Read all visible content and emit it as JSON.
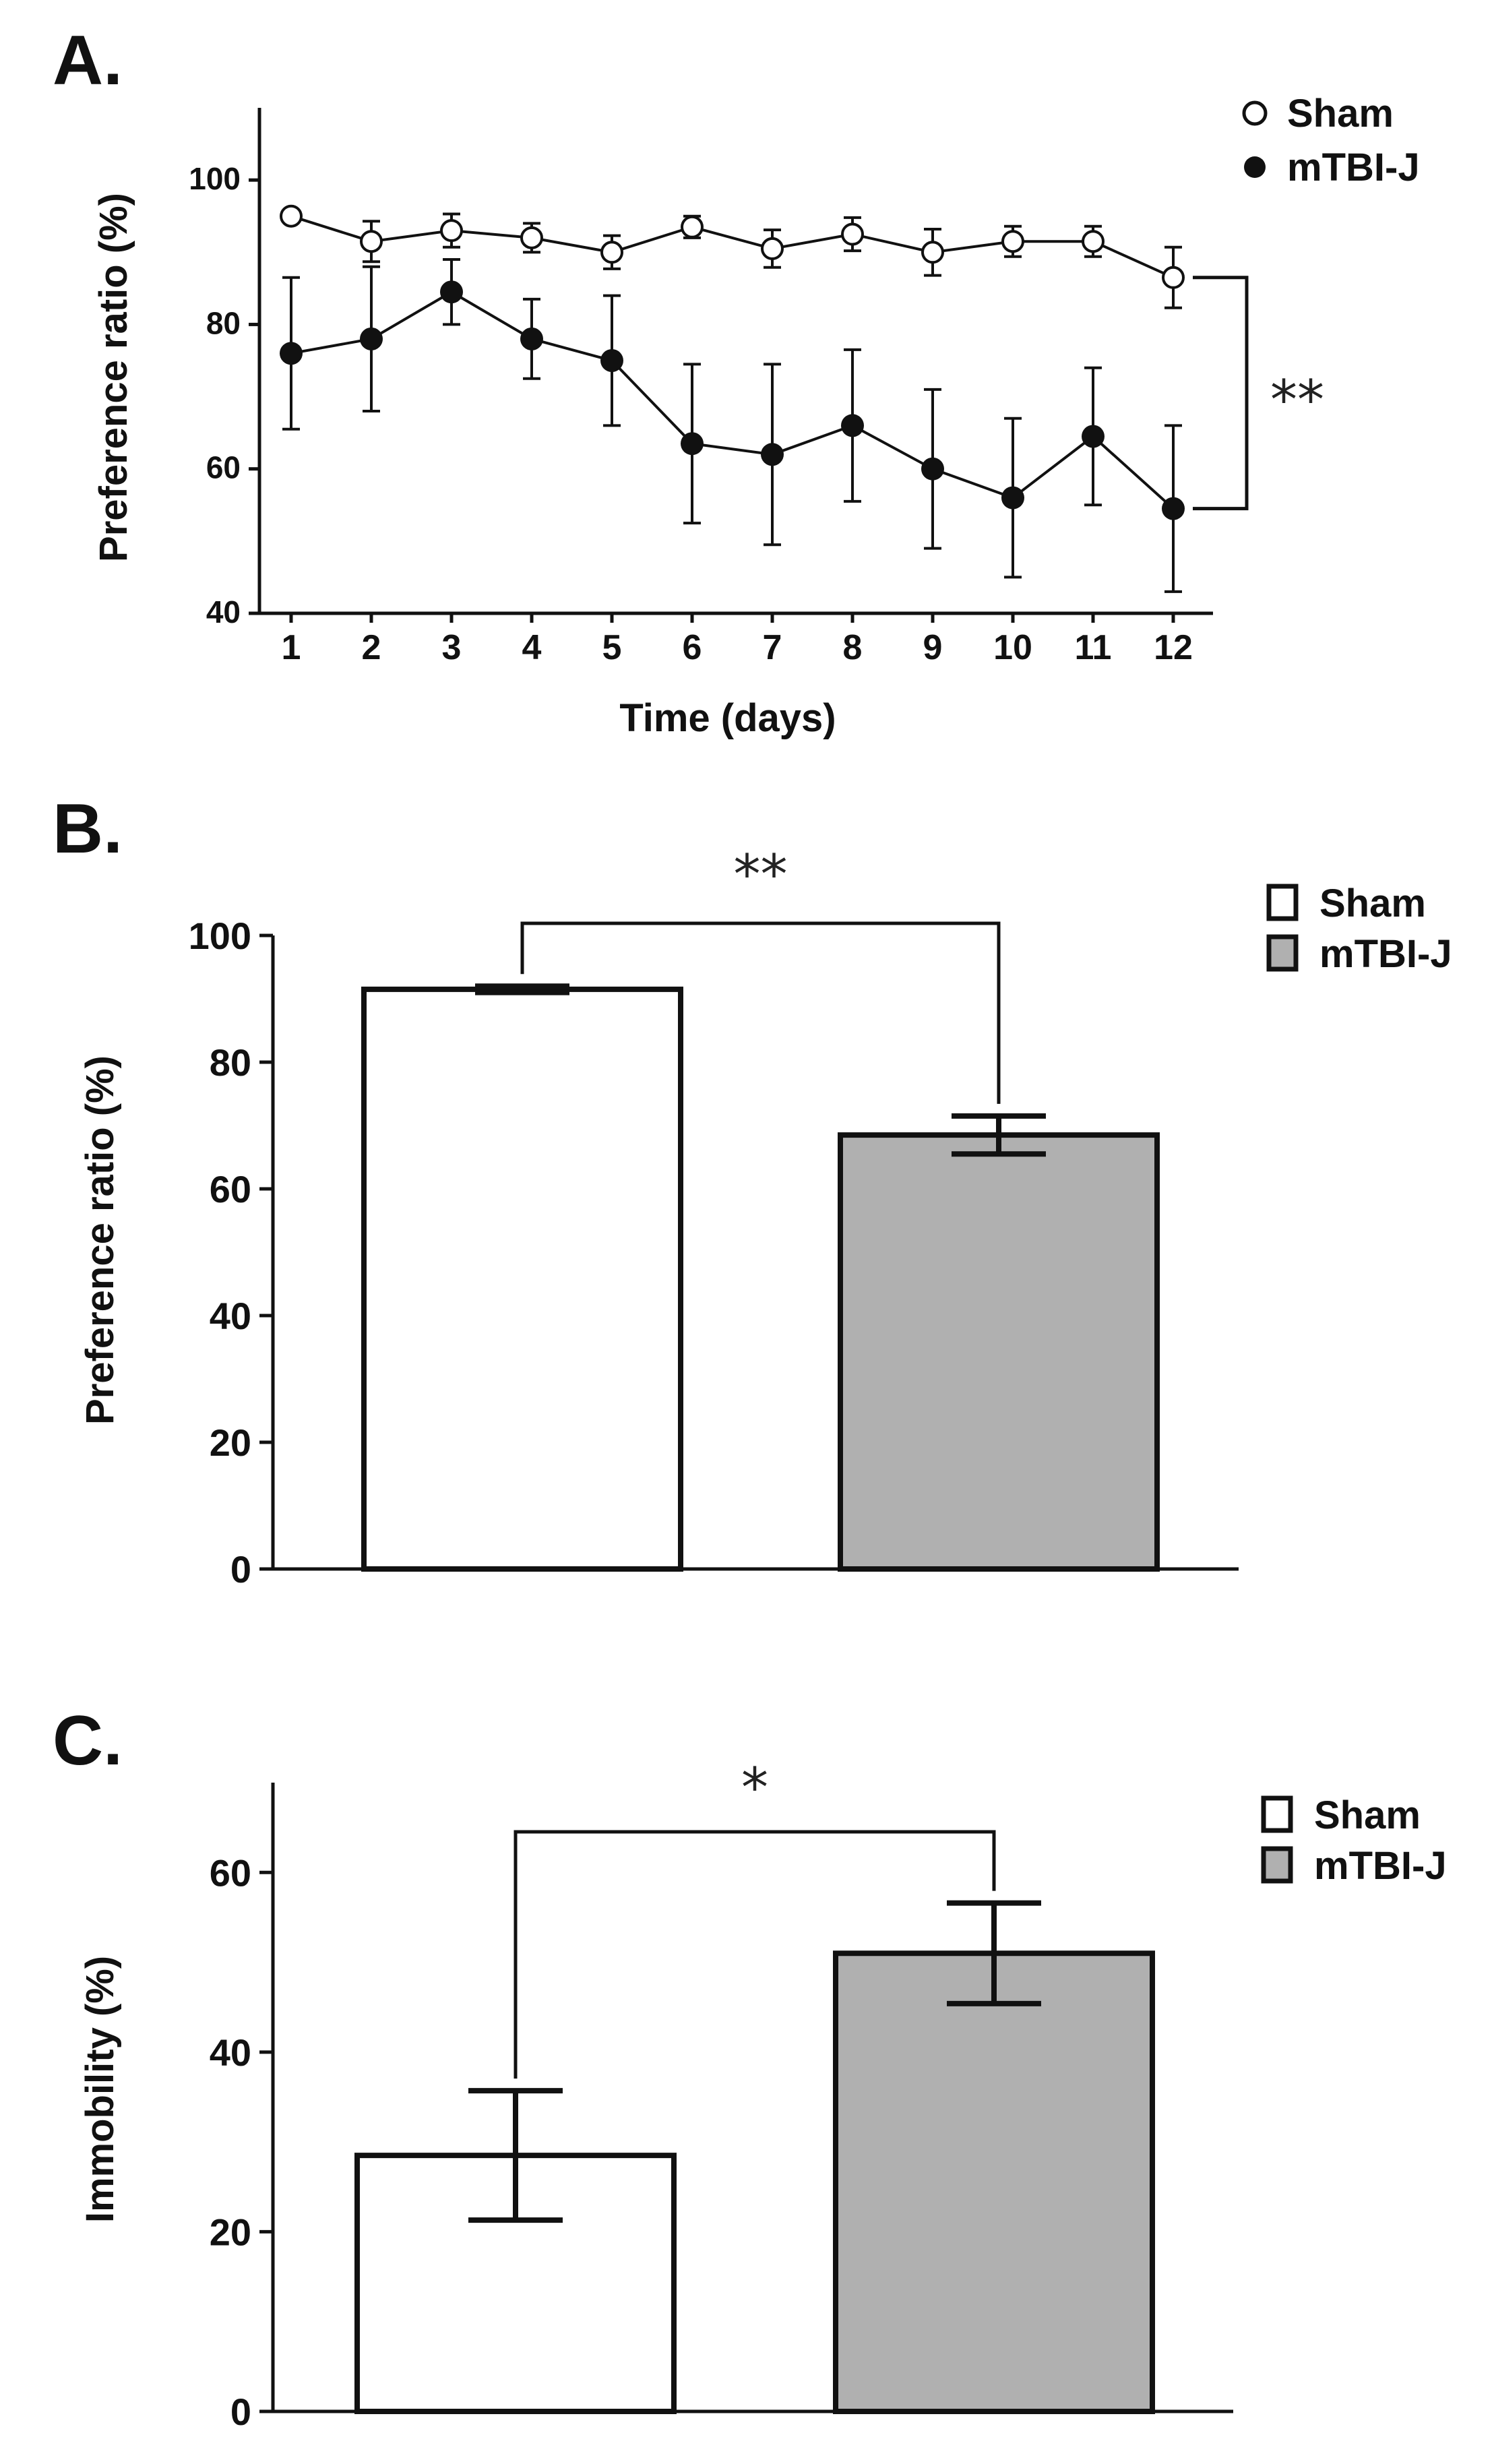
{
  "chart_data": [
    {
      "id": "A",
      "panel_label": "A.",
      "type": "line",
      "ylabel": "Preference ratio (%)",
      "xlabel": "Time (days)",
      "ylim": [
        40,
        110
      ],
      "yticks": [
        "40",
        "60",
        "80",
        "100"
      ],
      "x": [
        1,
        2,
        3,
        4,
        5,
        6,
        7,
        8,
        9,
        10,
        11,
        12
      ],
      "xtick_labels": [
        "1",
        "2",
        "3",
        "4",
        "5",
        "6",
        "7",
        "8",
        "9",
        "10",
        "11",
        "12"
      ],
      "series": [
        {
          "name": "Sham",
          "marker": "open-circle",
          "values": [
            95,
            91.5,
            93,
            92,
            90,
            93.5,
            90.5,
            92.5,
            90,
            91.5,
            91.5,
            86.5
          ],
          "errors": [
            0.3,
            2.8,
            2.3,
            2,
            2.3,
            1.5,
            2.6,
            2.3,
            3.2,
            2.1,
            2.1,
            4.2
          ]
        },
        {
          "name": "mTBI-J",
          "marker": "filled-circle",
          "values": [
            76,
            78,
            84.5,
            78,
            75,
            63.5,
            62,
            66,
            60,
            56,
            64.5,
            54.5
          ],
          "errors": [
            10.5,
            10,
            4.5,
            5.5,
            9,
            11,
            12.5,
            10.5,
            11,
            11,
            9.5,
            11.5
          ]
        }
      ],
      "legend": [
        "Sham",
        "mTBI-J"
      ],
      "significance": "**"
    },
    {
      "id": "B",
      "panel_label": "B.",
      "type": "bar",
      "ylabel": "Preference ratio (%)",
      "ylim": [
        0,
        100
      ],
      "yticks": [
        "0",
        "20",
        "40",
        "60",
        "80",
        "100"
      ],
      "categories": [
        "Sham",
        "mTBI-J"
      ],
      "values": [
        91.5,
        68.5
      ],
      "errors": [
        0.5,
        3
      ],
      "colors": [
        "#ffffff",
        "#b0b0b0"
      ],
      "legend": [
        "Sham",
        "mTBI-J"
      ],
      "significance": "**"
    },
    {
      "id": "C",
      "panel_label": "C.",
      "type": "bar",
      "ylabel": "Immobility (%)",
      "ylim": [
        0,
        70
      ],
      "yticks": [
        "0",
        "20",
        "40",
        "60"
      ],
      "categories": [
        "Sham",
        "mTBI-J"
      ],
      "values": [
        28.5,
        51
      ],
      "errors": [
        7.2,
        5.6
      ],
      "colors": [
        "#ffffff",
        "#b0b0b0"
      ],
      "legend": [
        "Sham",
        "mTBI-J"
      ],
      "significance": "*"
    }
  ]
}
